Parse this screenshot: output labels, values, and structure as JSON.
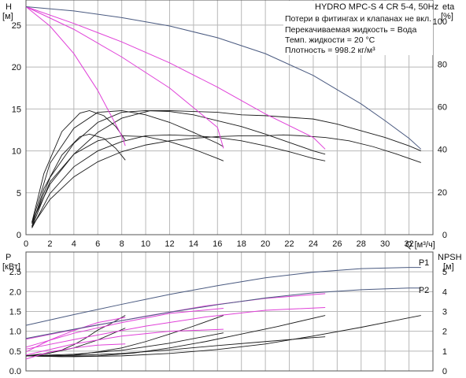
{
  "header": {
    "title_label": "HYDRO MPC-S 4 CR 5-4, 50Hz"
  },
  "info_lines": [
    "Потери в фитингах и клапанах не вкл.",
    "Перекачиваемая жидкость = Вода",
    "Темп. жидкости = 20 °C",
    "Плотность = 998.2 кг/м³"
  ],
  "colors": {
    "head_curve": "#4a5a80",
    "efficiency_curve": "#e040d8",
    "ref_curve": "#1a1a1a",
    "grid": "#b8b8b8"
  },
  "chart_data": [
    {
      "type": "line",
      "name": "head-efficiency",
      "xlabel": "Q [м³/ч]",
      "ylabel": "H\n[м]",
      "y2label": "eta\n[%]",
      "xlim": [
        0,
        34
      ],
      "ylim": [
        0,
        28
      ],
      "y2lim": [
        0,
        110
      ],
      "xticks": [
        0,
        2,
        4,
        6,
        8,
        10,
        12,
        14,
        16,
        18,
        20,
        22,
        24,
        26,
        28,
        30,
        32
      ],
      "yticks": [
        0,
        5,
        10,
        15,
        20,
        25
      ],
      "y2ticks": [
        0,
        20,
        40,
        60,
        80,
        100
      ],
      "grid": true,
      "series": [
        {
          "kind": "head",
          "x": [
            0,
            4,
            8,
            12,
            16,
            20,
            24,
            28,
            30,
            32,
            33
          ],
          "y": [
            27.2,
            26.7,
            25.9,
            24.9,
            23.5,
            21.6,
            19.0,
            15.6,
            13.6,
            11.5,
            10.2
          ]
        },
        {
          "kind": "eff",
          "x": [
            0,
            4,
            8,
            12,
            16,
            20,
            24,
            25
          ],
          "y": [
            27.2,
            25.2,
            23.0,
            20.5,
            17.6,
            14.4,
            11.6,
            10.2
          ]
        },
        {
          "kind": "eff",
          "x": [
            0,
            4,
            8,
            12,
            16,
            16.5
          ],
          "y": [
            27.2,
            24.5,
            21.2,
            17.5,
            12.8,
            10.3
          ]
        },
        {
          "kind": "eff",
          "x": [
            0,
            2,
            4,
            6,
            8,
            8.3
          ],
          "y": [
            27.2,
            24.9,
            21.6,
            17.2,
            11.8,
            10.6
          ]
        },
        {
          "kind": "ref",
          "x": [
            0.5,
            2,
            4,
            6,
            8,
            10.4,
            12,
            14,
            16,
            18,
            20,
            22,
            24,
            26,
            28,
            30,
            32,
            33
          ],
          "y": [
            1.5,
            6.0,
            9.6,
            12.2,
            13.9,
            14.8,
            14.8,
            14.7,
            14.6,
            14.3,
            14.2,
            14.0,
            13.8,
            13.2,
            12.4,
            11.6,
            10.6,
            10.0
          ]
        },
        {
          "kind": "ref",
          "x": [
            0.5,
            2,
            4,
            6,
            8,
            10,
            12,
            14,
            16,
            18,
            20,
            21.5,
            23,
            25,
            27,
            29,
            31,
            33
          ],
          "y": [
            1.0,
            4.2,
            6.9,
            8.7,
            9.9,
            10.7,
            11.2,
            11.5,
            11.7,
            11.8,
            11.8,
            11.9,
            11.8,
            11.6,
            11.2,
            10.5,
            9.6,
            8.6
          ]
        },
        {
          "kind": "ref",
          "x": [
            0.5,
            2,
            4,
            6,
            8,
            10,
            12,
            14,
            16,
            18,
            20,
            22,
            24,
            25
          ],
          "y": [
            1.3,
            6.8,
            10.9,
            13.4,
            14.6,
            14.8,
            14.7,
            14.3,
            13.6,
            12.9,
            12.0,
            11.0,
            10.0,
            9.6
          ]
        },
        {
          "kind": "ref",
          "x": [
            0.5,
            2,
            4,
            6,
            8,
            10,
            12,
            14,
            16,
            18,
            20,
            22,
            24,
            25
          ],
          "y": [
            0.8,
            4.9,
            8.1,
            10.0,
            11.1,
            11.8,
            11.9,
            11.8,
            11.6,
            11.2,
            10.6,
            9.9,
            9.1,
            8.8
          ]
        },
        {
          "kind": "ref",
          "x": [
            0.5,
            2,
            4,
            6,
            8,
            10,
            12,
            14,
            16,
            16.5
          ],
          "y": [
            1.4,
            8.5,
            12.7,
            14.6,
            14.8,
            14.3,
            13.4,
            12.2,
            10.9,
            10.5
          ]
        },
        {
          "kind": "ref",
          "x": [
            0.5,
            2,
            4,
            6,
            8,
            10,
            12,
            14,
            16,
            16.5
          ],
          "y": [
            0.9,
            6.3,
            9.6,
            11.2,
            11.8,
            11.7,
            11.1,
            10.2,
            9.1,
            8.8
          ]
        },
        {
          "kind": "ref",
          "x": [
            0.5,
            1.5,
            3,
            4.5,
            5.3,
            6.5,
            7.5,
            8.3
          ],
          "y": [
            1.5,
            7.3,
            12.3,
            14.5,
            14.8,
            14.2,
            12.9,
            11.3
          ]
        },
        {
          "kind": "ref",
          "x": [
            0.5,
            1.5,
            3,
            4.5,
            5.3,
            6.5,
            7.5,
            8.3
          ],
          "y": [
            1.0,
            5.5,
            9.5,
            11.7,
            12.0,
            11.5,
            10.3,
            8.9
          ]
        }
      ]
    },
    {
      "type": "line",
      "name": "power-npsh",
      "ylabel": "P\n[кВт]",
      "y2label": "NPSH\n[м]",
      "xlim": [
        0,
        34
      ],
      "ylim": [
        0,
        3.0
      ],
      "y2lim": [
        0,
        6
      ],
      "yticks": [
        0,
        0.5,
        1.0,
        1.5,
        2.0,
        2.5
      ],
      "ytick_labels": [
        "0.0",
        "0.5",
        "1.0",
        "1.5",
        "2.0",
        "2.5"
      ],
      "y2ticks": [
        0,
        1,
        2,
        3,
        4,
        5
      ],
      "grid": true,
      "annotations": [
        {
          "text": "P1",
          "x": 33.2,
          "y": 2.66
        },
        {
          "text": "P2",
          "x": 33.2,
          "y": 1.97
        }
      ],
      "series": [
        {
          "kind": "head",
          "label": "P1",
          "x": [
            0,
            4,
            8,
            12,
            16,
            20,
            24,
            28,
            32,
            33
          ],
          "y": [
            1.15,
            1.42,
            1.68,
            1.93,
            2.15,
            2.35,
            2.49,
            2.58,
            2.61,
            2.61
          ]
        },
        {
          "kind": "head",
          "label": "P2",
          "x": [
            0,
            4,
            8,
            12,
            16,
            20,
            24,
            28,
            32,
            33
          ],
          "y": [
            0.82,
            1.05,
            1.27,
            1.48,
            1.67,
            1.84,
            1.97,
            2.05,
            2.09,
            2.09
          ]
        },
        {
          "kind": "eff",
          "x": [
            0,
            5,
            10,
            15,
            20,
            25
          ],
          "y": [
            0.8,
            1.1,
            1.38,
            1.64,
            1.83,
            1.95
          ]
        },
        {
          "kind": "eff",
          "x": [
            0,
            5,
            10,
            15,
            20,
            25
          ],
          "y": [
            0.55,
            0.85,
            1.13,
            1.36,
            1.53,
            1.6
          ]
        },
        {
          "kind": "eff",
          "x": [
            0,
            4,
            8,
            12,
            16.5
          ],
          "y": [
            0.6,
            0.95,
            1.22,
            1.45,
            1.58
          ]
        },
        {
          "kind": "eff",
          "x": [
            0,
            4,
            8,
            12,
            16.5
          ],
          "y": [
            0.4,
            0.68,
            0.88,
            1.0,
            1.05
          ]
        },
        {
          "kind": "eff",
          "x": [
            0,
            2,
            4,
            6,
            8.3
          ],
          "y": [
            0.48,
            0.78,
            1.02,
            1.22,
            1.35
          ]
        },
        {
          "kind": "eff",
          "x": [
            0,
            2,
            4,
            6,
            8.3
          ],
          "y": [
            0.3,
            0.48,
            0.58,
            0.65,
            0.68
          ]
        },
        {
          "kind": "ref",
          "x": [
            0,
            4,
            8,
            12,
            16,
            20,
            24,
            28,
            33
          ],
          "y": [
            0.38,
            0.36,
            0.38,
            0.44,
            0.54,
            0.68,
            0.88,
            1.1,
            1.4
          ]
        },
        {
          "kind": "ref",
          "x": [
            0,
            3,
            6,
            9,
            12,
            15,
            18,
            21,
            25
          ],
          "y": [
            0.38,
            0.36,
            0.38,
            0.45,
            0.58,
            0.74,
            0.93,
            1.12,
            1.4
          ]
        },
        {
          "kind": "ref",
          "x": [
            0,
            2,
            4,
            6,
            8,
            10,
            12,
            14,
            16.5
          ],
          "y": [
            0.38,
            0.37,
            0.4,
            0.48,
            0.58,
            0.74,
            0.93,
            1.13,
            1.4
          ]
        },
        {
          "kind": "ref",
          "x": [
            0,
            1,
            2,
            3,
            4,
            5,
            6,
            7,
            8.3
          ],
          "y": [
            0.38,
            0.4,
            0.45,
            0.53,
            0.66,
            0.83,
            1.03,
            1.18,
            1.4
          ]
        },
        {
          "kind": "ref",
          "x": [
            0,
            4,
            8,
            12,
            16,
            20,
            24,
            25
          ],
          "y": [
            0.38,
            0.39,
            0.44,
            0.53,
            0.64,
            0.74,
            0.84,
            0.86
          ]
        },
        {
          "kind": "ref",
          "x": [
            0,
            4,
            8,
            12,
            16.5
          ],
          "y": [
            0.38,
            0.42,
            0.52,
            0.7,
            0.96
          ]
        },
        {
          "kind": "ref",
          "x": [
            0,
            2,
            4,
            6,
            8.3
          ],
          "y": [
            0.38,
            0.45,
            0.58,
            0.78,
            1.08
          ]
        }
      ]
    }
  ]
}
